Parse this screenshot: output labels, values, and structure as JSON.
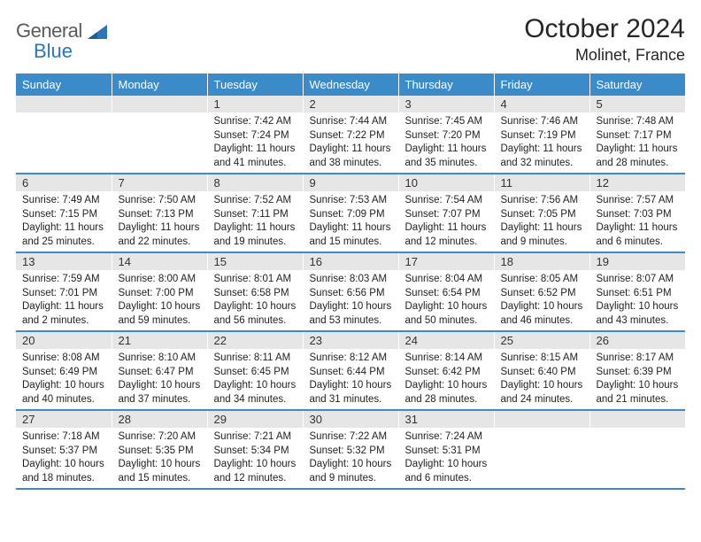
{
  "logo": {
    "word1": "General",
    "word2": "Blue"
  },
  "title": "October 2024",
  "location": "Molinet, France",
  "colors": {
    "header_bg": "#3b8bc9",
    "header_text": "#ffffff",
    "daynum_bg": "#e6e6e6",
    "divider": "#3b8bc9",
    "logo_gray": "#5a5a5a",
    "logo_blue": "#2e75b6"
  },
  "day_headers": [
    "Sunday",
    "Monday",
    "Tuesday",
    "Wednesday",
    "Thursday",
    "Friday",
    "Saturday"
  ],
  "weeks": [
    {
      "nums": [
        "",
        "",
        "1",
        "2",
        "3",
        "4",
        "5"
      ],
      "cells": [
        "",
        "",
        "Sunrise: 7:42 AM\nSunset: 7:24 PM\nDaylight: 11 hours and 41 minutes.",
        "Sunrise: 7:44 AM\nSunset: 7:22 PM\nDaylight: 11 hours and 38 minutes.",
        "Sunrise: 7:45 AM\nSunset: 7:20 PM\nDaylight: 11 hours and 35 minutes.",
        "Sunrise: 7:46 AM\nSunset: 7:19 PM\nDaylight: 11 hours and 32 minutes.",
        "Sunrise: 7:48 AM\nSunset: 7:17 PM\nDaylight: 11 hours and 28 minutes."
      ]
    },
    {
      "nums": [
        "6",
        "7",
        "8",
        "9",
        "10",
        "11",
        "12"
      ],
      "cells": [
        "Sunrise: 7:49 AM\nSunset: 7:15 PM\nDaylight: 11 hours and 25 minutes.",
        "Sunrise: 7:50 AM\nSunset: 7:13 PM\nDaylight: 11 hours and 22 minutes.",
        "Sunrise: 7:52 AM\nSunset: 7:11 PM\nDaylight: 11 hours and 19 minutes.",
        "Sunrise: 7:53 AM\nSunset: 7:09 PM\nDaylight: 11 hours and 15 minutes.",
        "Sunrise: 7:54 AM\nSunset: 7:07 PM\nDaylight: 11 hours and 12 minutes.",
        "Sunrise: 7:56 AM\nSunset: 7:05 PM\nDaylight: 11 hours and 9 minutes.",
        "Sunrise: 7:57 AM\nSunset: 7:03 PM\nDaylight: 11 hours and 6 minutes."
      ]
    },
    {
      "nums": [
        "13",
        "14",
        "15",
        "16",
        "17",
        "18",
        "19"
      ],
      "cells": [
        "Sunrise: 7:59 AM\nSunset: 7:01 PM\nDaylight: 11 hours and 2 minutes.",
        "Sunrise: 8:00 AM\nSunset: 7:00 PM\nDaylight: 10 hours and 59 minutes.",
        "Sunrise: 8:01 AM\nSunset: 6:58 PM\nDaylight: 10 hours and 56 minutes.",
        "Sunrise: 8:03 AM\nSunset: 6:56 PM\nDaylight: 10 hours and 53 minutes.",
        "Sunrise: 8:04 AM\nSunset: 6:54 PM\nDaylight: 10 hours and 50 minutes.",
        "Sunrise: 8:05 AM\nSunset: 6:52 PM\nDaylight: 10 hours and 46 minutes.",
        "Sunrise: 8:07 AM\nSunset: 6:51 PM\nDaylight: 10 hours and 43 minutes."
      ]
    },
    {
      "nums": [
        "20",
        "21",
        "22",
        "23",
        "24",
        "25",
        "26"
      ],
      "cells": [
        "Sunrise: 8:08 AM\nSunset: 6:49 PM\nDaylight: 10 hours and 40 minutes.",
        "Sunrise: 8:10 AM\nSunset: 6:47 PM\nDaylight: 10 hours and 37 minutes.",
        "Sunrise: 8:11 AM\nSunset: 6:45 PM\nDaylight: 10 hours and 34 minutes.",
        "Sunrise: 8:12 AM\nSunset: 6:44 PM\nDaylight: 10 hours and 31 minutes.",
        "Sunrise: 8:14 AM\nSunset: 6:42 PM\nDaylight: 10 hours and 28 minutes.",
        "Sunrise: 8:15 AM\nSunset: 6:40 PM\nDaylight: 10 hours and 24 minutes.",
        "Sunrise: 8:17 AM\nSunset: 6:39 PM\nDaylight: 10 hours and 21 minutes."
      ]
    },
    {
      "nums": [
        "27",
        "28",
        "29",
        "30",
        "31",
        "",
        ""
      ],
      "cells": [
        "Sunrise: 7:18 AM\nSunset: 5:37 PM\nDaylight: 10 hours and 18 minutes.",
        "Sunrise: 7:20 AM\nSunset: 5:35 PM\nDaylight: 10 hours and 15 minutes.",
        "Sunrise: 7:21 AM\nSunset: 5:34 PM\nDaylight: 10 hours and 12 minutes.",
        "Sunrise: 7:22 AM\nSunset: 5:32 PM\nDaylight: 10 hours and 9 minutes.",
        "Sunrise: 7:24 AM\nSunset: 5:31 PM\nDaylight: 10 hours and 6 minutes.",
        "",
        ""
      ]
    }
  ]
}
